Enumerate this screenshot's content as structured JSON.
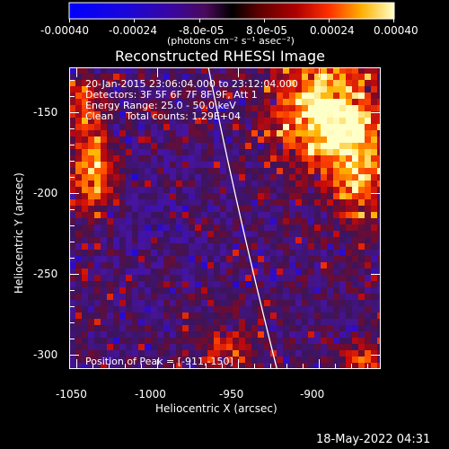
{
  "image": {
    "title": "Reconstructed RHESSI Image",
    "colorbar": {
      "ticks": [
        "-0.00040",
        "-0.00024",
        "-8.0e-05",
        "8.0e-05",
        "0.00024",
        "0.00040"
      ],
      "units": "(photons cm⁻² s⁻¹ asec⁻²)",
      "range": [
        -0.0004,
        0.0004
      ]
    },
    "axes": {
      "xlabel": "Heliocentric X (arcsec)",
      "ylabel": "Heliocentric Y (arcsec)",
      "xticks": [
        "-1050",
        "-1000",
        "-950",
        "-900"
      ],
      "yticks": [
        "-150",
        "-200",
        "-250",
        "-300"
      ],
      "xrange": [
        -1058,
        -866
      ],
      "yrange": [
        -313,
        -127
      ]
    },
    "info": {
      "time_range": "20-Jan-2015 23:06:04.000 to 23:12:04.000",
      "detectors": "Detectors: 3F 5F 6F 7F 8F 9F, Att 1",
      "energy": "Energy Range: 25.0 - 50.0 keV",
      "clean": "Clean    Total counts: 1.29E+04"
    },
    "peak": "Position of Peak = [-911,-150]",
    "timestamp": "18-May-2022 04:31",
    "colors": {
      "background": "#000000",
      "axes": "#ffffff"
    }
  }
}
